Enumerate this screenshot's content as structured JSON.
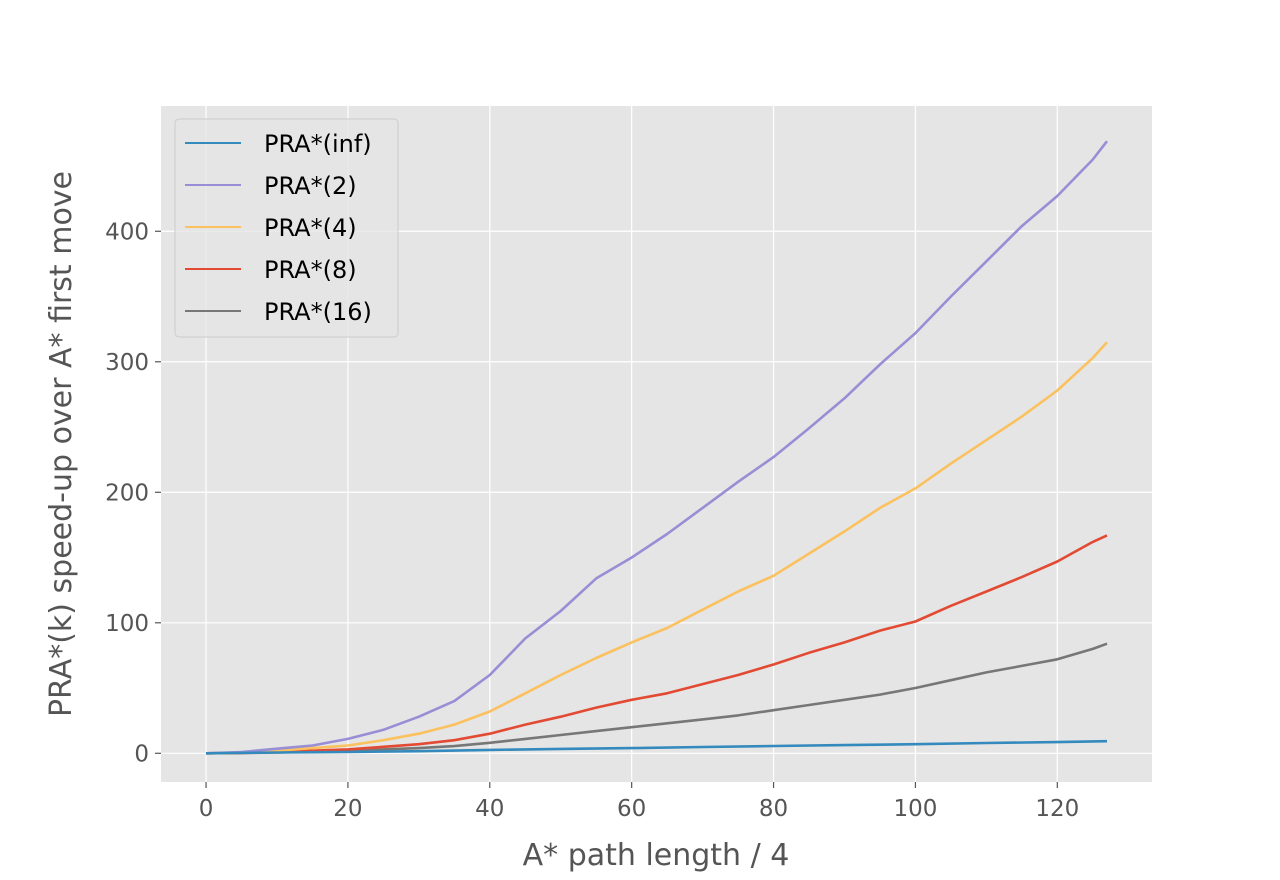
{
  "chart_data": {
    "type": "line",
    "title": "",
    "xlabel": "A* path length / 4",
    "ylabel": "PRA*(k) speed-up over A* first move",
    "xlim": [
      -6.35,
      133.35
    ],
    "ylim": [
      -22,
      496
    ],
    "xticks": [
      0,
      20,
      40,
      60,
      80,
      100,
      120
    ],
    "yticks": [
      0,
      100,
      200,
      300,
      400
    ],
    "xtick_labels": [
      "0",
      "20",
      "40",
      "60",
      "80",
      "100",
      "120"
    ],
    "ytick_labels": [
      "0",
      "100",
      "200",
      "300",
      "400"
    ],
    "grid": true,
    "legend_position": "top-left",
    "background": "#e5e5e5",
    "series": [
      {
        "name": "PRA*(inf)",
        "color": "#348abd",
        "x": [
          0,
          10,
          20,
          30,
          40,
          50,
          60,
          70,
          80,
          90,
          100,
          110,
          120,
          127
        ],
        "y": [
          0,
          0.6,
          1.0,
          1.6,
          2.6,
          3.4,
          4.0,
          4.8,
          5.6,
          6.3,
          7.0,
          7.9,
          8.6,
          9.3
        ]
      },
      {
        "name": "PRA*(2)",
        "color": "#988ed5",
        "x": [
          0,
          5,
          10,
          15,
          20,
          25,
          30,
          35,
          40,
          45,
          50,
          55,
          60,
          65,
          70,
          75,
          80,
          85,
          90,
          95,
          100,
          105,
          110,
          115,
          120,
          125,
          127
        ],
        "y": [
          0,
          1,
          3.5,
          6,
          11,
          18,
          28,
          40,
          60,
          88,
          109,
          134,
          150,
          168,
          188,
          208,
          227,
          249,
          272,
          298,
          322,
          350,
          377,
          404,
          427,
          455,
          469
        ]
      },
      {
        "name": "PRA*(4)",
        "color": "#fbc15e",
        "x": [
          0,
          5,
          10,
          15,
          20,
          25,
          30,
          35,
          40,
          45,
          50,
          55,
          60,
          65,
          70,
          75,
          80,
          85,
          90,
          95,
          100,
          105,
          110,
          115,
          120,
          125,
          127
        ],
        "y": [
          0,
          0.6,
          2,
          4,
          6,
          10,
          15,
          22,
          32,
          46,
          60,
          73,
          85,
          96,
          110,
          124,
          136,
          153,
          170,
          188,
          203,
          222,
          240,
          258,
          278,
          303,
          315
        ]
      },
      {
        "name": "PRA*(8)",
        "color": "#e24a33",
        "x": [
          0,
          5,
          10,
          15,
          20,
          25,
          30,
          35,
          40,
          45,
          50,
          55,
          60,
          65,
          70,
          75,
          80,
          85,
          90,
          95,
          100,
          105,
          110,
          115,
          120,
          125,
          127
        ],
        "y": [
          0,
          0.3,
          1,
          2,
          3,
          5,
          7,
          10,
          15,
          22,
          28,
          35,
          41,
          46,
          53,
          60,
          68,
          77,
          85,
          94,
          101,
          113,
          124,
          135,
          147,
          162,
          167
        ]
      },
      {
        "name": "PRA*(16)",
        "color": "#777777",
        "x": [
          0,
          5,
          10,
          15,
          20,
          25,
          30,
          35,
          40,
          45,
          50,
          55,
          60,
          65,
          70,
          75,
          80,
          85,
          90,
          95,
          100,
          105,
          110,
          115,
          120,
          125,
          127
        ],
        "y": [
          0,
          0.2,
          0.6,
          1.2,
          2,
          3,
          4,
          5.5,
          8,
          11,
          14,
          17,
          20,
          23,
          26,
          29,
          33,
          37,
          41,
          45,
          50,
          56,
          62,
          67,
          72,
          80,
          84
        ]
      }
    ]
  }
}
